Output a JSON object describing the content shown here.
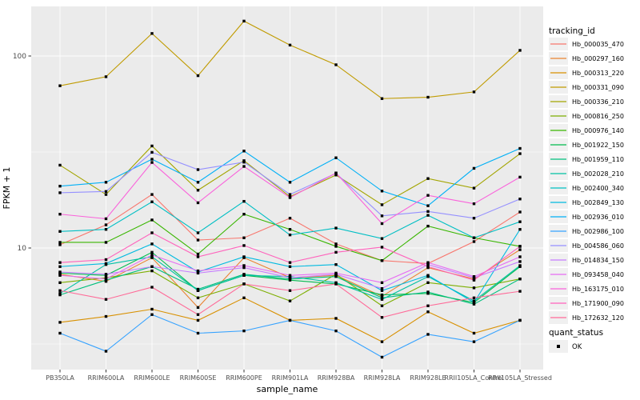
{
  "chart_data": {
    "type": "line",
    "title": "",
    "xlabel": "sample_name",
    "ylabel": "FPKM + 1",
    "y_scale": "log10",
    "y_domain": [
      2.3,
      181
    ],
    "grid": true,
    "panel_bg": "#EBEBEB",
    "grid_color": "#FFFFFF",
    "point_shape": "square",
    "point_color": "#000000",
    "y_ticks": [
      {
        "label": "100",
        "value": 100
      },
      {
        "label": "10",
        "value": 10
      }
    ],
    "y_minor": [
      31.62,
      3.162
    ],
    "categories": [
      "PB350LA",
      "RRIM600LA",
      "RRIM600LE",
      "RRIM600SE",
      "RRIM600PE",
      "RRIM901LA",
      "RRIM928BA",
      "RRIM928LA",
      "RRIM928LE",
      "RRII105LA_Control",
      "RRII105LA_Stressed"
    ],
    "legend_title": "tracking_id",
    "series": [
      {
        "name": "Hb_000035_470",
        "color": "#F8766D",
        "values": [
          10.4,
          13.2,
          19,
          11,
          11.3,
          14.3,
          10.5,
          8.6,
          8.3,
          10.8,
          15.4
        ]
      },
      {
        "name": "Hb_000297_160",
        "color": "#EA8331",
        "values": [
          7.3,
          6.7,
          8.9,
          4.9,
          8.9,
          7.0,
          7.2,
          5.6,
          7.9,
          6.9,
          9.8
        ]
      },
      {
        "name": "Hb_000313_220",
        "color": "#D89000",
        "values": [
          4.1,
          4.4,
          4.8,
          4.2,
          5.5,
          4.2,
          4.3,
          3.25,
          4.65,
          3.6,
          4.2
        ]
      },
      {
        "name": "Hb_000331_090",
        "color": "#C09B00",
        "values": [
          70,
          78,
          131,
          79,
          152,
          114,
          90,
          60,
          61,
          65,
          107
        ]
      },
      {
        "name": "Hb_000336_210",
        "color": "#A3A500",
        "values": [
          27,
          19,
          34,
          20,
          28.5,
          18.5,
          24,
          16.8,
          23,
          20.5,
          31
        ]
      },
      {
        "name": "Hb_000816_250",
        "color": "#7CAE00",
        "values": [
          6.6,
          7.0,
          7.6,
          5.5,
          6.5,
          5.3,
          7.3,
          5.0,
          6.6,
          6.2,
          6.9
        ]
      },
      {
        "name": "Hb_000976_140",
        "color": "#39B600",
        "values": [
          10.7,
          10.7,
          14,
          9.3,
          15,
          12.5,
          10.2,
          8.6,
          13,
          11.3,
          10.2
        ]
      },
      {
        "name": "Hb_001922_150",
        "color": "#00BB4E",
        "values": [
          7.4,
          7.2,
          9.5,
          6.0,
          7.2,
          6.8,
          6.5,
          5.7,
          5.8,
          5.2,
          8.0
        ]
      },
      {
        "name": "Hb_001959_110",
        "color": "#00BF7D",
        "values": [
          5.7,
          6.8,
          8.0,
          6.1,
          7.3,
          6.9,
          7.1,
          5.5,
          5.9,
          5.1,
          6.9
        ]
      },
      {
        "name": "Hb_002028_210",
        "color": "#00C1A3",
        "values": [
          5.8,
          8.2,
          9.0,
          6.0,
          7.2,
          7.1,
          6.6,
          5.4,
          7.1,
          5.3,
          8.1
        ]
      },
      {
        "name": "Hb_002400_340",
        "color": "#00BFC4",
        "values": [
          12.2,
          12.5,
          17.4,
          12,
          17.5,
          11.7,
          12.7,
          11.2,
          14.8,
          11.3,
          13.7
        ]
      },
      {
        "name": "Hb_002849_130",
        "color": "#00BAE0",
        "values": [
          8.0,
          8.3,
          10.5,
          7.5,
          9.0,
          8.0,
          8.2,
          6.0,
          7.2,
          5.2,
          12.5
        ]
      },
      {
        "name": "Hb_002936_010",
        "color": "#00B0F6",
        "values": [
          21,
          22,
          29,
          22,
          32,
          22,
          29.5,
          19.8,
          16.6,
          26,
          33
        ]
      },
      {
        "name": "Hb_002986_100",
        "color": "#35A2FF",
        "values": [
          3.6,
          2.9,
          4.5,
          3.6,
          3.7,
          4.2,
          3.7,
          2.7,
          3.55,
          3.25,
          4.2
        ]
      },
      {
        "name": "Hb_004586_060",
        "color": "#9590FF",
        "values": [
          19.4,
          19.7,
          31.5,
          25.6,
          28,
          19,
          24.5,
          14.7,
          15.5,
          14.3,
          18
        ]
      },
      {
        "name": "Hb_014834_150",
        "color": "#C77CFF",
        "values": [
          7.5,
          7.3,
          8.0,
          7.4,
          7.9,
          7.0,
          7.3,
          6.15,
          8.2,
          7.0,
          8.5
        ]
      },
      {
        "name": "Hb_093458_040",
        "color": "#E76BF3",
        "values": [
          7.2,
          6.9,
          9.2,
          7.6,
          8.1,
          7.2,
          7.4,
          6.6,
          8.4,
          7.1,
          9.0
        ]
      },
      {
        "name": "Hb_163175_010",
        "color": "#FA62DB",
        "values": [
          15,
          14.2,
          27.9,
          17.2,
          26.6,
          18.3,
          24.6,
          13.4,
          18.8,
          17,
          23.4
        ]
      },
      {
        "name": "Hb_171900_090",
        "color": "#FF62BC",
        "values": [
          8.4,
          8.7,
          12,
          9,
          10.3,
          8.4,
          9.5,
          10.1,
          8.0,
          6.8,
          10.2
        ]
      },
      {
        "name": "Hb_172632_120",
        "color": "#FF6A98",
        "values": [
          6.0,
          5.4,
          6.25,
          4.5,
          6.5,
          6.0,
          6.5,
          4.35,
          5.0,
          5.5,
          5.95
        ]
      }
    ],
    "legend2_title": "quant_status",
    "legend2_items": [
      {
        "label": "OK",
        "shape": "square",
        "color": "#000000"
      }
    ]
  }
}
